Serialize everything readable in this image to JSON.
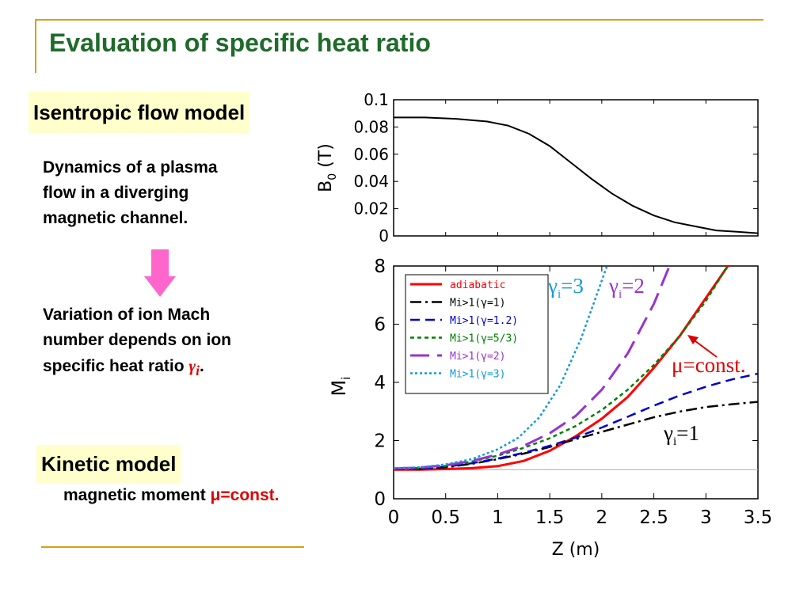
{
  "slide": {
    "title": "Evaluation of specific heat ratio",
    "isentropic_label": "Isentropic flow model",
    "dynamics_lines": [
      "Dynamics of a plasma",
      "flow in a diverging",
      "magnetic channel."
    ],
    "variation_lines": [
      "Variation of ion Mach",
      "number depends on ion",
      "specific heat ratio"
    ],
    "gamma_symbol": "γ",
    "gamma_sub": "i",
    "period": ".",
    "kinetic_label": "Kinetic model",
    "magnetic_moment_text": "magnetic moment",
    "mu_const": "μ=const."
  },
  "colors": {
    "title": "#1f6b2a",
    "accent_line": "#d4a017",
    "tag_bg": "#ffffcc",
    "arrow": "#ff66cc",
    "emphasis": "#e00000"
  },
  "chart_data": [
    {
      "type": "line",
      "ylabel": "B0 (T)",
      "ylabel_main": "B",
      "ylabel_sub": "0",
      "ylabel_unit": " (T)",
      "xlim": [
        0,
        3.5
      ],
      "ylim": [
        0,
        0.1
      ],
      "yticks": [
        "0",
        "0.02",
        "0.04",
        "0.06",
        "0.08",
        "0.1"
      ],
      "ytick_values": [
        0,
        0.02,
        0.04,
        0.06,
        0.08,
        0.1
      ],
      "series": [
        {
          "color": "#000000",
          "x": [
            0,
            0.3,
            0.6,
            0.9,
            1.1,
            1.3,
            1.5,
            1.7,
            1.9,
            2.1,
            2.3,
            2.5,
            2.7,
            2.9,
            3.1,
            3.3,
            3.5
          ],
          "y": [
            0.087,
            0.087,
            0.086,
            0.084,
            0.081,
            0.075,
            0.066,
            0.054,
            0.042,
            0.031,
            0.022,
            0.015,
            0.01,
            0.007,
            0.004,
            0.003,
            0.002
          ]
        }
      ]
    },
    {
      "type": "line",
      "xlabel": "Z (m)",
      "ylabel": "Mi",
      "ylabel_main": "M",
      "ylabel_sub": "i",
      "xlim": [
        0,
        3.5
      ],
      "ylim": [
        0,
        8
      ],
      "xticks": [
        "0",
        "0.5",
        "1",
        "1.5",
        "2",
        "2.5",
        "3",
        "3.5"
      ],
      "xtick_values": [
        0,
        0.5,
        1,
        1.5,
        2,
        2.5,
        3,
        3.5
      ],
      "yticks": [
        "0",
        "2",
        "4",
        "6",
        "8"
      ],
      "ytick_values": [
        0,
        2,
        4,
        6,
        8
      ],
      "baseline": 1,
      "legend": {
        "position": "top-left",
        "entries": [
          "adiabatic",
          "Mi>1(γ=1)",
          "Mi>1(γ=1.2)",
          "Mi>1(γ=5/3)",
          "Mi>1(γ=2)",
          "Mi>1(γ=3)"
        ]
      },
      "annotations": [
        "γi=3",
        "γi=2",
        "μ=const.",
        "γi=1"
      ],
      "series": [
        {
          "name": "adiabatic",
          "color": "#ff0000",
          "dash": "",
          "width": 3,
          "x": [
            0,
            0.25,
            0.5,
            0.75,
            1.0,
            1.25,
            1.5,
            1.75,
            2.0,
            2.25,
            2.5,
            2.75,
            3.0,
            3.25
          ],
          "y": [
            1.0,
            1.0,
            1.02,
            1.05,
            1.12,
            1.3,
            1.65,
            2.15,
            2.75,
            3.5,
            4.5,
            5.6,
            6.9,
            8.2
          ]
        },
        {
          "name": "Mi>1(γ=1)",
          "color": "#000000",
          "dash": "14,5,3,5",
          "width": 2.5,
          "x": [
            0,
            0.25,
            0.5,
            0.75,
            1.0,
            1.25,
            1.5,
            1.75,
            2.0,
            2.25,
            2.5,
            2.75,
            3.0,
            3.25,
            3.5
          ],
          "y": [
            1.02,
            1.03,
            1.08,
            1.2,
            1.36,
            1.55,
            1.78,
            2.05,
            2.3,
            2.55,
            2.8,
            3.0,
            3.15,
            3.25,
            3.33
          ]
        },
        {
          "name": "Mi>1(γ=1.2)",
          "color": "#0000cc",
          "dash": "12,7",
          "width": 2.5,
          "x": [
            0,
            0.25,
            0.5,
            0.75,
            1.0,
            1.25,
            1.5,
            1.75,
            2.0,
            2.25,
            2.5,
            2.75,
            3.0,
            3.25,
            3.5
          ],
          "y": [
            1.02,
            1.04,
            1.1,
            1.22,
            1.38,
            1.58,
            1.82,
            2.1,
            2.45,
            2.82,
            3.2,
            3.55,
            3.85,
            4.1,
            4.3
          ]
        },
        {
          "name": "Mi>1(γ=5/3)",
          "color": "#008000",
          "dash": "5,4",
          "width": 2.5,
          "x": [
            0,
            0.25,
            0.5,
            0.75,
            1.0,
            1.25,
            1.5,
            1.75,
            2.0,
            2.25,
            2.5,
            2.75,
            3.0,
            3.2
          ],
          "y": [
            1.03,
            1.06,
            1.13,
            1.28,
            1.48,
            1.75,
            2.08,
            2.5,
            3.05,
            3.75,
            4.6,
            5.6,
            6.8,
            7.95
          ]
        },
        {
          "name": "Mi>1(γ=2)",
          "color": "#9933cc",
          "dash": "24,10",
          "width": 3,
          "x": [
            0,
            0.25,
            0.5,
            0.75,
            1.0,
            1.25,
            1.5,
            1.75,
            2.0,
            2.25,
            2.5,
            2.65
          ],
          "y": [
            1.04,
            1.07,
            1.15,
            1.3,
            1.52,
            1.82,
            2.25,
            2.85,
            3.75,
            5.0,
            6.7,
            8.0
          ]
        },
        {
          "name": "Mi>1(γ=3)",
          "color": "#1199dd",
          "dash": "3,3",
          "width": 2.5,
          "x": [
            0,
            0.25,
            0.5,
            0.75,
            1.0,
            1.2,
            1.4,
            1.6,
            1.8,
            1.95,
            2.05
          ],
          "y": [
            1.05,
            1.08,
            1.18,
            1.36,
            1.7,
            2.1,
            2.8,
            3.9,
            5.5,
            7.0,
            8.0
          ]
        }
      ]
    }
  ]
}
